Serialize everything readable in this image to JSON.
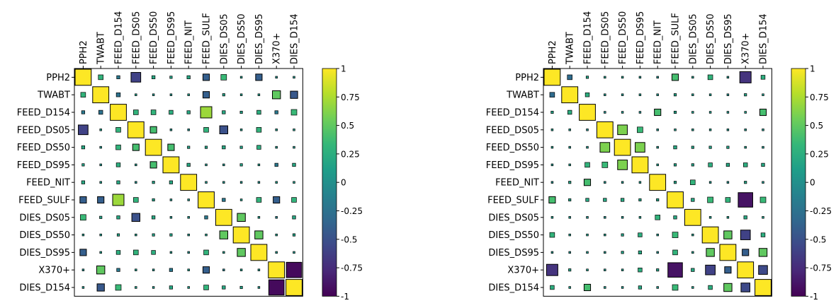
{
  "labels": [
    "PPH2",
    "TWABT",
    "FEED_D154",
    "FEED_DS05",
    "FEED_DS50",
    "FEED_DS95",
    "FEED_NIT",
    "FEED_SULF",
    "DIES_DS05",
    "DIES_DS50",
    "DIES_DS95",
    "X370+",
    "DIES_D154"
  ],
  "colorbar_ticks": [
    {
      "value": 1,
      "label": "1"
    },
    {
      "value": 0.75,
      "label": "0.75"
    },
    {
      "value": 0.5,
      "label": "0.5"
    },
    {
      "value": 0.25,
      "label": "0.25"
    },
    {
      "value": 0,
      "label": "0"
    },
    {
      "value": -0.25,
      "label": "-0.25"
    },
    {
      "value": -0.5,
      "label": "-0.5"
    },
    {
      "value": -0.75,
      "label": "-0.75"
    },
    {
      "value": -1,
      "label": "-1"
    }
  ],
  "colormap": [
    "#440154",
    "#482878",
    "#3e4989",
    "#31688e",
    "#26828e",
    "#1f9e89",
    "#35b779",
    "#6ece58",
    "#b5de2b",
    "#fde725"
  ],
  "chart_data": [
    {
      "type": "heatmap",
      "variant": "correlation-squares",
      "title": "",
      "xlabel": "",
      "ylabel": "",
      "clim": [
        -1,
        1
      ],
      "rows": [
        "PPH2",
        "TWABT",
        "FEED_D154",
        "FEED_DS05",
        "FEED_DS50",
        "FEED_DS95",
        "FEED_NIT",
        "FEED_SULF",
        "DIES_DS05",
        "DIES_DS50",
        "DIES_DS95",
        "X370+",
        "DIES_D154"
      ],
      "matrix": [
        [
          1.0,
          0.3,
          -0.2,
          -0.6,
          0.2,
          0.15,
          0.2,
          -0.4,
          0.35,
          0.1,
          -0.4,
          0.0,
          0.05
        ],
        [
          0.3,
          1.0,
          -0.25,
          0.1,
          0.05,
          0.05,
          0.1,
          -0.4,
          0.15,
          0.1,
          0.1,
          0.5,
          -0.45
        ],
        [
          -0.2,
          -0.25,
          1.0,
          0.3,
          0.3,
          0.25,
          0.2,
          0.7,
          0.2,
          0.15,
          0.25,
          -0.2,
          0.35
        ],
        [
          -0.6,
          0.1,
          0.3,
          1.0,
          0.4,
          0.05,
          0.0,
          0.3,
          -0.5,
          0.1,
          0.3,
          0.1,
          0.1
        ],
        [
          0.2,
          0.05,
          0.3,
          0.4,
          1.0,
          0.4,
          0.15,
          0.15,
          0.2,
          0.15,
          0.25,
          0.05,
          0.05
        ],
        [
          0.15,
          0.05,
          0.25,
          0.05,
          0.4,
          1.0,
          0.2,
          0.05,
          0.05,
          0.15,
          0.1,
          -0.2,
          0.2
        ],
        [
          0.2,
          0.1,
          0.2,
          0.0,
          0.15,
          0.2,
          1.0,
          0.05,
          0.05,
          0.05,
          0.0,
          0.1,
          0.1
        ],
        [
          -0.4,
          -0.4,
          0.7,
          0.3,
          0.15,
          0.05,
          0.05,
          1.0,
          -0.2,
          0.1,
          0.3,
          -0.4,
          0.3
        ],
        [
          0.35,
          0.15,
          0.2,
          -0.5,
          0.2,
          0.05,
          0.05,
          -0.2,
          1.0,
          0.5,
          0.1,
          -0.1,
          0.2
        ],
        [
          0.1,
          0.1,
          0.15,
          0.1,
          0.15,
          0.15,
          0.05,
          0.1,
          0.5,
          1.0,
          0.5,
          0.1,
          0.15
        ],
        [
          -0.4,
          0.1,
          0.25,
          0.3,
          0.25,
          0.1,
          0.0,
          0.3,
          0.1,
          0.5,
          1.0,
          0.05,
          0.05
        ],
        [
          0.0,
          0.5,
          -0.2,
          0.1,
          0.05,
          -0.2,
          0.1,
          -0.4,
          -0.1,
          0.1,
          0.05,
          1.0,
          -0.95
        ],
        [
          0.05,
          -0.45,
          0.35,
          0.1,
          0.05,
          0.2,
          0.1,
          0.3,
          0.2,
          0.15,
          0.05,
          -0.95,
          1.0
        ]
      ]
    },
    {
      "type": "heatmap",
      "variant": "correlation-squares",
      "title": "",
      "xlabel": "",
      "ylabel": "",
      "clim": [
        -1,
        1
      ],
      "rows": [
        "PPH2",
        "TWABT",
        "FEED_D154",
        "FEED_DS05",
        "FEED_DS50",
        "FEED_DS95",
        "FEED_NIT",
        "FEED_SULF",
        "DIES_DS05",
        "DIES_DS50",
        "DIES_DS95",
        "X370+",
        "DIES_D154"
      ],
      "matrix": [
        [
          1.0,
          -0.3,
          0.15,
          0.1,
          0.1,
          0.05,
          0.0,
          0.4,
          0.1,
          0.3,
          0.05,
          -0.7,
          0.25
        ],
        [
          -0.3,
          1.0,
          0.25,
          0.05,
          0.05,
          0.1,
          0.05,
          0.15,
          0.1,
          0.1,
          0.0,
          0.15,
          0.1
        ],
        [
          0.15,
          0.25,
          1.0,
          0.0,
          0.05,
          0.0,
          0.4,
          0.15,
          0.1,
          0.1,
          0.05,
          0.1,
          0.4
        ],
        [
          0.1,
          0.05,
          0.0,
          1.0,
          0.6,
          0.35,
          0.05,
          0.1,
          0.1,
          0.1,
          0.05,
          0.05,
          0.05
        ],
        [
          0.1,
          0.05,
          0.05,
          0.6,
          1.0,
          0.6,
          0.05,
          0.2,
          0.15,
          0.15,
          0.15,
          0.1,
          0.05
        ],
        [
          0.05,
          0.1,
          0.3,
          0.35,
          0.6,
          1.0,
          0.1,
          0.15,
          0.15,
          0.25,
          0.2,
          0.25,
          0.2
        ],
        [
          0.0,
          0.15,
          0.4,
          0.05,
          0.05,
          0.1,
          1.0,
          0.15,
          0.3,
          0.05,
          0.0,
          0.15,
          0.05
        ],
        [
          0.4,
          0.15,
          0.2,
          0.2,
          0.2,
          0.15,
          0.15,
          1.0,
          0.2,
          0.35,
          0.3,
          -0.9,
          0.35
        ],
        [
          0.1,
          0.05,
          0.0,
          0.0,
          0.05,
          0.1,
          0.3,
          0.2,
          1.0,
          0.1,
          0.1,
          0.2,
          0.1
        ],
        [
          0.3,
          0.1,
          0.1,
          0.1,
          0.15,
          0.25,
          0.05,
          0.35,
          0.1,
          1.0,
          0.5,
          -0.6,
          0.25
        ],
        [
          0.05,
          0.0,
          0.05,
          0.05,
          0.15,
          0.2,
          0.0,
          0.3,
          0.1,
          0.5,
          1.0,
          -0.4,
          0.5
        ],
        [
          -0.7,
          0.15,
          0.1,
          0.05,
          0.1,
          0.25,
          0.15,
          -0.9,
          0.2,
          -0.6,
          -0.4,
          1.0,
          -0.55
        ],
        [
          0.25,
          0.1,
          0.4,
          0.05,
          0.05,
          0.2,
          0.05,
          0.35,
          0.1,
          0.25,
          0.5,
          -0.55,
          1.0
        ]
      ]
    }
  ]
}
